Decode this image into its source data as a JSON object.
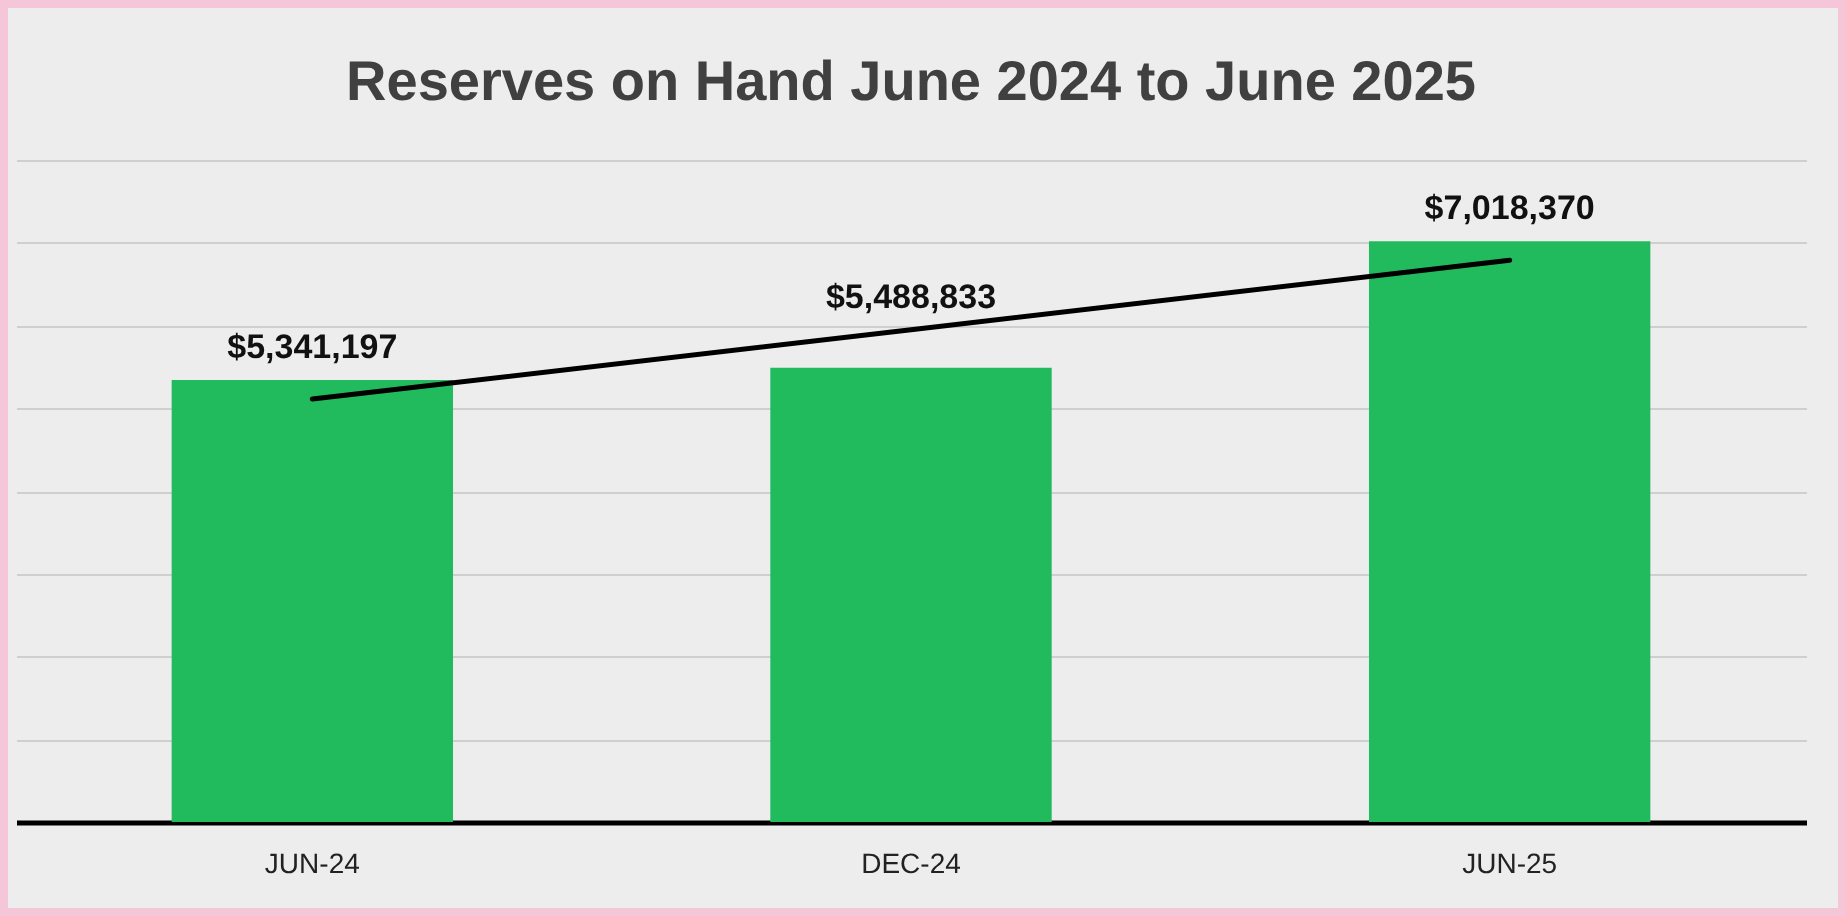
{
  "chart_data": {
    "type": "bar",
    "title": "Reserves on Hand June 2024 to June 2025",
    "categories": [
      "JUN-24",
      "DEC-24",
      "JUN-25"
    ],
    "series": [
      {
        "color": "#21bb5e",
        "values": [
          5341197,
          5488833,
          7018370
        ],
        "value_labels": [
          "$5,341,197",
          "$5,488,833",
          "$7,018,370"
        ]
      },
      {
        "type": "line",
        "color": "#000000",
        "values": [
          5110880,
          5949467,
          6788053
        ]
      }
    ],
    "ylim": [
      0,
      8000000
    ],
    "yticks": [
      {
        "value": 0,
        "label": null
      },
      {
        "value": 1000000,
        "label": null
      },
      {
        "value": 2000000,
        "label": null
      },
      {
        "value": 3000000,
        "label": null
      },
      {
        "value": 4000000,
        "label": null
      },
      {
        "value": 5000000,
        "label": null
      },
      {
        "value": 6000000,
        "label": null
      },
      {
        "value": 7000000,
        "label": null
      },
      {
        "value": 8000000,
        "label": null
      }
    ],
    "grid": "y",
    "tick_labels": "x"
  }
}
